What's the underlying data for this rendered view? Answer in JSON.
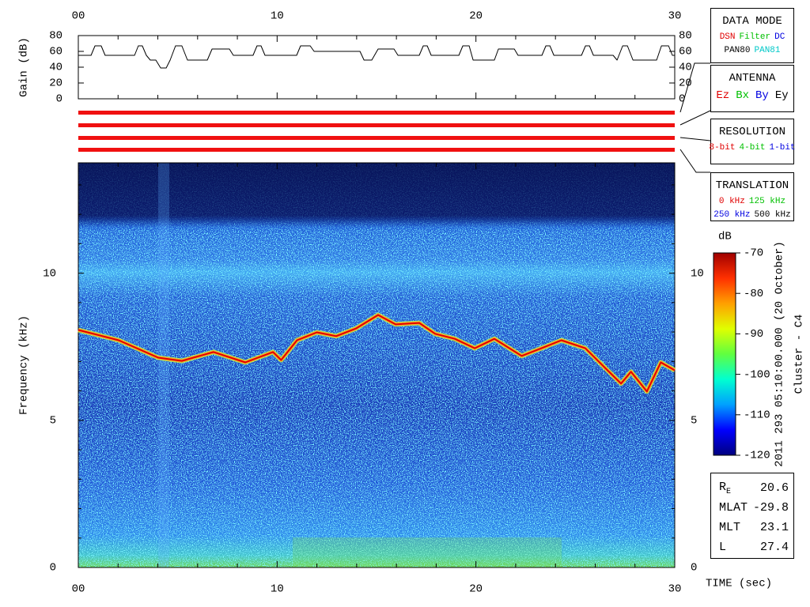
{
  "chart_data": [
    {
      "type": "line",
      "ylabel": "Gain (dB)",
      "xlim": [
        0,
        30
      ],
      "xticks": [
        {
          "value": 0,
          "label": "00"
        },
        10,
        20,
        30
      ],
      "xminor": [
        2,
        4,
        6,
        8,
        12,
        14,
        16,
        18,
        22,
        24,
        26,
        28
      ],
      "ylim": [
        0,
        80
      ],
      "yticks": [
        0,
        20,
        40,
        60,
        80
      ],
      "x": [
        0,
        0.64,
        0.84,
        1.15,
        1.35,
        2.83,
        3.02,
        3.22,
        3.42,
        3.62,
        3.9,
        4.14,
        4.42,
        4.62,
        4.89,
        5.21,
        5.49,
        6.49,
        6.73,
        7.6,
        7.8,
        8.79,
        8.99,
        9.19,
        9.39,
        10.98,
        11.18,
        11.66,
        11.86,
        14.17,
        14.37,
        14.76,
        15.08,
        15.88,
        16.08,
        17.15,
        17.35,
        17.55,
        17.75,
        19.14,
        19.34,
        19.66,
        19.86,
        20.93,
        21.13,
        21.93,
        22.12,
        23.32,
        23.52,
        23.72,
        23.92,
        25.31,
        25.51,
        25.71,
        25.91,
        26.9,
        27.1,
        27.38,
        27.62,
        27.9,
        29.09,
        29.33,
        29.69,
        29.88,
        30
      ],
      "series": [
        {
          "color": "#000000",
          "values": [
            55,
            55,
            67,
            67,
            55,
            55,
            67,
            67,
            55,
            49,
            49,
            39,
            39,
            49,
            67,
            67,
            49,
            49,
            63,
            63,
            55,
            55,
            67,
            67,
            55,
            55,
            67,
            67,
            60,
            60,
            49,
            49,
            63,
            63,
            55,
            55,
            67,
            67,
            55,
            55,
            67,
            67,
            49,
            49,
            63,
            63,
            55,
            55,
            67,
            67,
            55,
            55,
            67,
            67,
            55,
            55,
            49,
            67,
            67,
            49,
            49,
            67,
            67,
            55,
            55
          ]
        }
      ]
    },
    {
      "type": "spectrogram",
      "ylabel": "Frequency (kHz)",
      "xlabel": "TIME (sec)",
      "xlim": [
        0,
        30
      ],
      "xticks": [
        {
          "value": 0,
          "label": "00"
        },
        10,
        20,
        30
      ],
      "xminor": [
        2,
        4,
        6,
        8,
        12,
        14,
        16,
        18,
        22,
        24,
        26,
        28
      ],
      "ylim": [
        0,
        13.75
      ],
      "yticks": [
        0,
        5,
        10
      ],
      "yminor": [
        1,
        2,
        3,
        4,
        6,
        7,
        8,
        9,
        11,
        12,
        13
      ],
      "x": [
        0,
        2.03,
        4.02,
        5.21,
        6.8,
        8.4,
        9.79,
        10.2,
        11.0,
        12.0,
        12.97,
        13.97,
        15.08,
        15.96,
        17.15,
        17.95,
        18.94,
        19.94,
        20.93,
        22.3,
        23.3,
        24.3,
        25.5,
        26.5,
        27.3,
        27.8,
        28.6,
        29.3,
        30
      ],
      "series": [
        {
          "color": "#e00000",
          "values": [
            8.07,
            7.72,
            7.13,
            7.02,
            7.32,
            6.97,
            7.32,
            7.05,
            7.72,
            7.99,
            7.86,
            8.12,
            8.58,
            8.26,
            8.31,
            7.94,
            7.77,
            7.45,
            7.77,
            7.19,
            7.45,
            7.72,
            7.45,
            6.78,
            6.25,
            6.65,
            5.98,
            6.97,
            6.7
          ]
        }
      ]
    },
    {
      "type": "colorbar",
      "label": "dB",
      "ylim": [
        -120,
        -70
      ],
      "yticks": [
        -120,
        -110,
        -100,
        -90,
        -80,
        -70
      ],
      "colors": [
        "#00007f",
        "#0000ff",
        "#00a0ff",
        "#00ffd0",
        "#60ff40",
        "#e0ff00",
        "#ffa000",
        "#ff3000",
        "#a00000"
      ],
      "annotations": [
        "2011 293 05:10:00.000 (20 October)",
        "Cluster - C4"
      ]
    }
  ],
  "panels": [
    {
      "title": "DATA MODE",
      "rows": [
        [
          {
            "text": "DSN",
            "color": "#e00000"
          },
          {
            "text": "Filter",
            "color": "#00c000"
          },
          {
            "text": "DC",
            "color": "#0000e0"
          }
        ],
        [
          {
            "text": "PAN80",
            "color": "#000000"
          },
          {
            "text": "PAN81",
            "color": "#00c8c8"
          }
        ]
      ]
    },
    {
      "title": "ANTENNA",
      "rows": [
        [
          {
            "text": "Ez",
            "color": "#e00000"
          },
          {
            "text": "Bx",
            "color": "#00c000"
          },
          {
            "text": "By",
            "color": "#0000e0"
          },
          {
            "text": "Ey",
            "color": "#000000"
          }
        ]
      ]
    },
    {
      "title": "RESOLUTION",
      "rows": [
        [
          {
            "text": "8-bit",
            "color": "#e00000"
          },
          {
            "text": "4-bit",
            "color": "#00c000"
          },
          {
            "text": "1-bit",
            "color": "#0000e0"
          }
        ]
      ]
    },
    {
      "title": "TRANSLATION",
      "rows": [
        [
          {
            "text": "0 kHz",
            "color": "#e00000"
          },
          {
            "text": "125 kHz",
            "color": "#00c000"
          }
        ],
        [
          {
            "text": "250 kHz",
            "color": "#0000e0"
          },
          {
            "text": "500 kHz",
            "color": "#000000"
          }
        ]
      ]
    }
  ],
  "info": [
    {
      "label": "R",
      "sub": "E",
      "value": "20.6"
    },
    {
      "label": "MLAT",
      "value": "-29.8"
    },
    {
      "label": "MLT",
      "value": "23.1"
    },
    {
      "label": "L",
      "value": "27.4"
    }
  ]
}
